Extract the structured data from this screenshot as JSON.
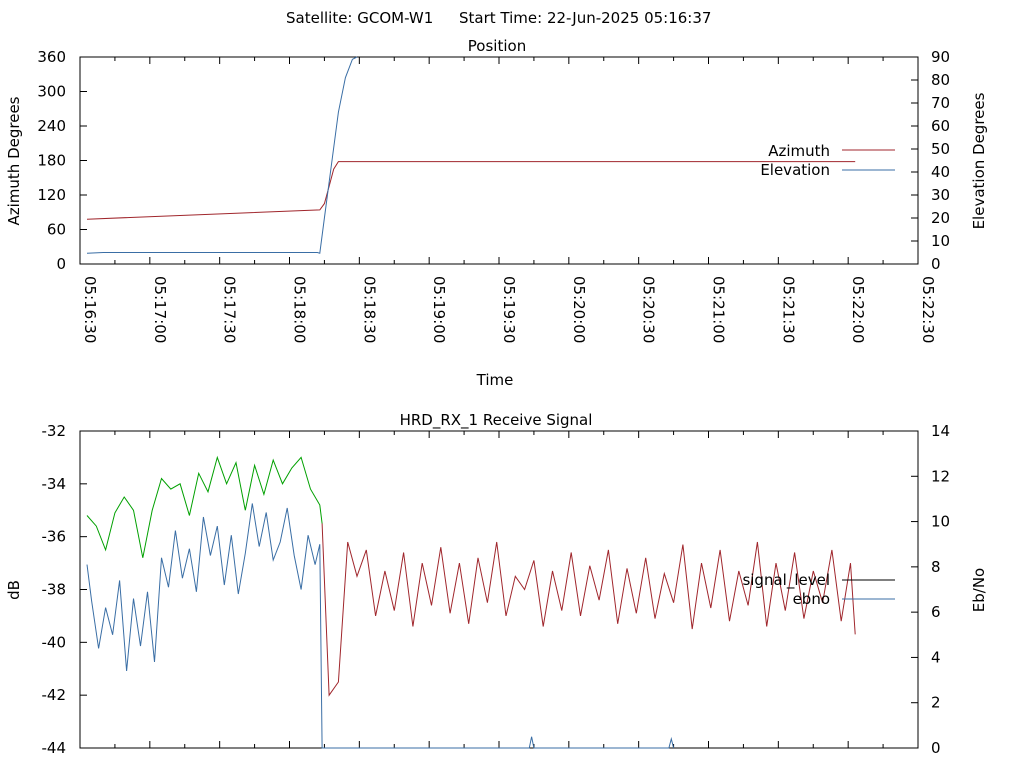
{
  "header": {
    "satellite_label": "Satellite: GCOM-W1",
    "start_time_label": "Start Time: 22-Jun-2025 05:16:37"
  },
  "colors": {
    "azimuth": "#a0262c",
    "elevation": "#3a6ea5",
    "signal_red": "#a0262c",
    "signal_green": "#00a000",
    "ebno": "#3a6ea5",
    "legend_signal": "#000000"
  },
  "chart_data": [
    {
      "type": "line",
      "title": "Position",
      "xlabel": "Time",
      "ylabel": "Azimuth Degrees",
      "y2label": "Elevation Degrees",
      "xlim": [
        "05:16:30",
        "05:22:30"
      ],
      "ylim": [
        0,
        360
      ],
      "y2lim": [
        0,
        90
      ],
      "x_ticks": [
        "05:16:30",
        "05:17:00",
        "05:17:30",
        "05:18:00",
        "05:18:30",
        "05:19:00",
        "05:19:30",
        "05:20:00",
        "05:20:30",
        "05:21:00",
        "05:21:30",
        "05:22:00",
        "05:22:30"
      ],
      "y_ticks": [
        "0",
        "60",
        "120",
        "180",
        "240",
        "300",
        "360"
      ],
      "y2_ticks": [
        "0",
        "10",
        "20",
        "30",
        "40",
        "50",
        "60",
        "70",
        "80",
        "90"
      ],
      "legend_position": "right",
      "series": [
        {
          "name": "Azimuth",
          "axis": "left",
          "x": [
            "05:16:33",
            "05:18:13",
            "05:18:15",
            "05:18:17",
            "05:18:19",
            "05:18:21",
            "05:22:03"
          ],
          "y": [
            78,
            94,
            105,
            135,
            165,
            178,
            178
          ]
        },
        {
          "name": "Elevation",
          "axis": "right",
          "x": [
            "05:16:33",
            "05:16:40",
            "05:18:12",
            "05:18:13",
            "05:18:15",
            "05:18:18",
            "05:18:21",
            "05:18:24",
            "05:18:27",
            "05:18:29"
          ],
          "y": [
            4.7,
            5.0,
            5.0,
            4.7,
            20,
            43,
            66,
            81,
            89,
            90
          ]
        }
      ]
    },
    {
      "type": "line",
      "title": "HRD_RX_1 Receive Signal",
      "ylabel": "dB",
      "y2label": "Eb/No",
      "xlim": [
        "05:16:30",
        "05:22:30"
      ],
      "ylim": [
        -44,
        -32
      ],
      "y2lim": [
        0,
        14
      ],
      "y_ticks": [
        "-32",
        "-34",
        "-36",
        "-38",
        "-40",
        "-42",
        "-44"
      ],
      "y2_ticks": [
        "0",
        "2",
        "4",
        "6",
        "8",
        "10",
        "12",
        "14"
      ],
      "legend_position": "right",
      "series": [
        {
          "name": "signal_level",
          "axis": "left",
          "x": [
            "05:16:33",
            "05:16:37",
            "05:16:41",
            "05:16:45",
            "05:16:49",
            "05:16:53",
            "05:16:57",
            "05:17:01",
            "05:17:05",
            "05:17:09",
            "05:17:13",
            "05:17:17",
            "05:17:21",
            "05:17:25",
            "05:17:29",
            "05:17:33",
            "05:17:37",
            "05:17:41",
            "05:17:45",
            "05:17:49",
            "05:17:53",
            "05:17:57",
            "05:18:01",
            "05:18:05",
            "05:18:09",
            "05:18:13",
            "05:18:14",
            "05:18:17",
            "05:18:21",
            "05:18:25",
            "05:18:29",
            "05:18:33",
            "05:18:37",
            "05:18:41",
            "05:18:45",
            "05:18:49",
            "05:18:53",
            "05:18:57",
            "05:19:01",
            "05:19:05",
            "05:19:09",
            "05:19:13",
            "05:19:17",
            "05:19:21",
            "05:19:25",
            "05:19:29",
            "05:19:33",
            "05:19:37",
            "05:19:41",
            "05:19:45",
            "05:19:49",
            "05:19:53",
            "05:19:57",
            "05:20:01",
            "05:20:05",
            "05:20:09",
            "05:20:13",
            "05:20:17",
            "05:20:21",
            "05:20:25",
            "05:20:29",
            "05:20:33",
            "05:20:37",
            "05:20:41",
            "05:20:45",
            "05:20:49",
            "05:20:53",
            "05:20:57",
            "05:21:01",
            "05:21:05",
            "05:21:09",
            "05:21:13",
            "05:21:17",
            "05:21:21",
            "05:21:25",
            "05:21:29",
            "05:21:33",
            "05:21:37",
            "05:21:41",
            "05:21:45",
            "05:21:49",
            "05:21:53",
            "05:21:57",
            "05:22:01",
            "05:22:03"
          ],
          "y": [
            -35.2,
            -35.6,
            -36.5,
            -35.1,
            -34.5,
            -35.0,
            -36.8,
            -35.0,
            -33.8,
            -34.2,
            -34.0,
            -35.2,
            -33.6,
            -34.3,
            -33.0,
            -34.0,
            -33.2,
            -35.0,
            -33.3,
            -34.4,
            -33.1,
            -34.0,
            -33.4,
            -33.0,
            -34.2,
            -34.8,
            -35.5,
            -42.0,
            -41.5,
            -36.2,
            -37.5,
            -36.5,
            -39.0,
            -37.3,
            -38.8,
            -36.6,
            -39.4,
            -37.0,
            -38.6,
            -36.4,
            -38.9,
            -37.0,
            -39.3,
            -36.8,
            -38.5,
            -36.2,
            -39.0,
            -37.5,
            -38.0,
            -36.9,
            -39.4,
            -37.3,
            -38.8,
            -36.6,
            -39.0,
            -37.1,
            -38.4,
            -36.5,
            -39.3,
            -37.2,
            -38.9,
            -36.8,
            -39.1,
            -37.4,
            -38.5,
            -36.3,
            -39.5,
            -37.0,
            -38.7,
            -36.5,
            -39.2,
            -37.3,
            -38.6,
            -36.2,
            -39.4,
            -37.0,
            -38.8,
            -36.6,
            -39.1,
            -37.3,
            -38.5,
            -36.5,
            -39.2,
            -37.0,
            -39.7
          ]
        },
        {
          "name": "ebno",
          "axis": "right",
          "x": [
            "05:16:33",
            "05:16:35",
            "05:16:38",
            "05:16:41",
            "05:16:44",
            "05:16:47",
            "05:16:50",
            "05:16:53",
            "05:16:56",
            "05:16:59",
            "05:17:02",
            "05:17:05",
            "05:17:08",
            "05:17:11",
            "05:17:14",
            "05:17:17",
            "05:17:20",
            "05:17:23",
            "05:17:26",
            "05:17:29",
            "05:17:32",
            "05:17:35",
            "05:17:38",
            "05:17:41",
            "05:17:44",
            "05:17:47",
            "05:17:50",
            "05:17:53",
            "05:17:56",
            "05:17:59",
            "05:18:02",
            "05:18:05",
            "05:18:08",
            "05:18:11",
            "05:18:13",
            "05:18:14",
            "05:18:15",
            "05:19:43",
            "05:19:44",
            "05:19:45",
            "05:19:46",
            "05:20:43",
            "05:20:44",
            "05:20:45"
          ],
          "y": [
            8.1,
            6.5,
            4.4,
            6.2,
            5.0,
            7.4,
            3.4,
            6.6,
            4.5,
            6.9,
            3.8,
            8.4,
            7.1,
            9.6,
            7.5,
            8.8,
            6.9,
            10.2,
            8.5,
            9.8,
            7.2,
            9.4,
            6.8,
            8.6,
            10.8,
            8.9,
            10.4,
            8.3,
            9.1,
            10.6,
            8.5,
            7.0,
            9.4,
            8.1,
            9.0,
            0.0,
            0.0,
            0.0,
            0.5,
            0.0,
            0.0,
            0.0,
            0.4,
            0.0
          ]
        }
      ]
    }
  ]
}
